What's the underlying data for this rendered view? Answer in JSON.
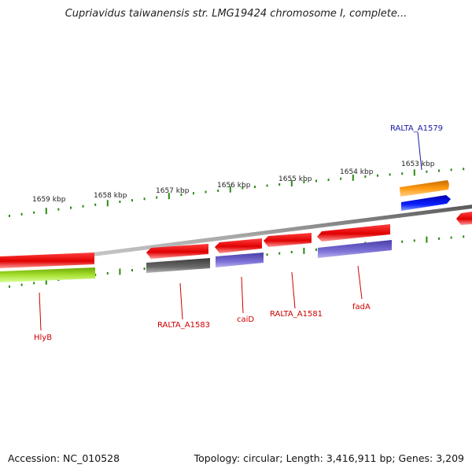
{
  "title": "Cupriavidus taiwanensis str. LMG19424 chromosome I, complete...",
  "footer": {
    "accession": "Accession: NC_010528",
    "summary": "Topology: circular; Length: 3,416,911 bp; Genes: 3,209"
  },
  "ruler_labels": [
    "1659 kbp",
    "1658 kbp",
    "1657 kbp",
    "1656 kbp",
    "1655 kbp",
    "1654 kbp",
    "1653 kbp"
  ],
  "gene_labels": {
    "ralta_a1579": "RALTA_A1579",
    "hlyb": "HlyB",
    "ralta_a1583": "RALTA_A1583",
    "caid": "caiD",
    "ralta_a1581": "RALTA_A1581",
    "fada": "fadA"
  },
  "colors": {
    "forward_red": "#e60000",
    "reverse_red": "#e60000",
    "green": "#8fd11a",
    "gray": "#606060",
    "purple": "#6a5fc4",
    "orange": "#ff8a00",
    "blue": "#0a1ee8",
    "ruler_green": "#2a8a14",
    "backbone": "#8a8a8a",
    "label_red": "#cc0000",
    "label_blue": "#1a1aa6"
  }
}
